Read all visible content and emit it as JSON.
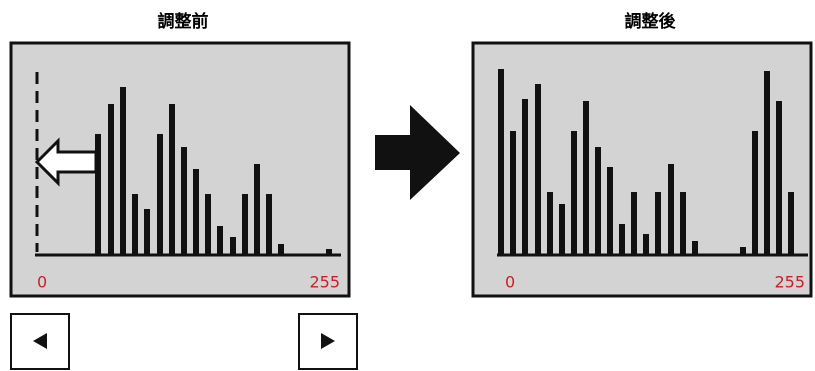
{
  "panels": [
    {
      "title": "調整前",
      "axis_min_label": "0",
      "axis_max_label": "255",
      "bars": [
        {
          "x": 98,
          "value": 120
        },
        {
          "x": 111,
          "value": 150
        },
        {
          "x": 123,
          "value": 167
        },
        {
          "x": 135,
          "value": 60
        },
        {
          "x": 147,
          "value": 45
        },
        {
          "x": 160,
          "value": 120
        },
        {
          "x": 172,
          "value": 150
        },
        {
          "x": 184,
          "value": 107
        },
        {
          "x": 196,
          "value": 85
        },
        {
          "x": 208,
          "value": 60
        },
        {
          "x": 220,
          "value": 28
        },
        {
          "x": 233,
          "value": 17
        },
        {
          "x": 245,
          "value": 60
        },
        {
          "x": 257,
          "value": 90
        },
        {
          "x": 269,
          "value": 60
        },
        {
          "x": 281,
          "value": 10
        },
        {
          "x": 329,
          "value": 5
        }
      ]
    },
    {
      "title": "調整後",
      "axis_min_label": "0",
      "axis_max_label": "255",
      "bars": [
        {
          "x": 501,
          "value": 185
        },
        {
          "x": 513,
          "value": 123
        },
        {
          "x": 525,
          "value": 155
        },
        {
          "x": 538,
          "value": 170
        },
        {
          "x": 550,
          "value": 62
        },
        {
          "x": 562,
          "value": 50
        },
        {
          "x": 574,
          "value": 123
        },
        {
          "x": 586,
          "value": 153
        },
        {
          "x": 598,
          "value": 107
        },
        {
          "x": 610,
          "value": 87
        },
        {
          "x": 622,
          "value": 30
        },
        {
          "x": 634,
          "value": 62
        },
        {
          "x": 646,
          "value": 20
        },
        {
          "x": 658,
          "value": 62
        },
        {
          "x": 671,
          "value": 90
        },
        {
          "x": 683,
          "value": 62
        },
        {
          "x": 695,
          "value": 13
        },
        {
          "x": 743,
          "value": 7
        },
        {
          "x": 755,
          "value": 123
        },
        {
          "x": 767,
          "value": 183
        },
        {
          "x": 779,
          "value": 153
        },
        {
          "x": 791,
          "value": 62
        }
      ]
    }
  ]
}
